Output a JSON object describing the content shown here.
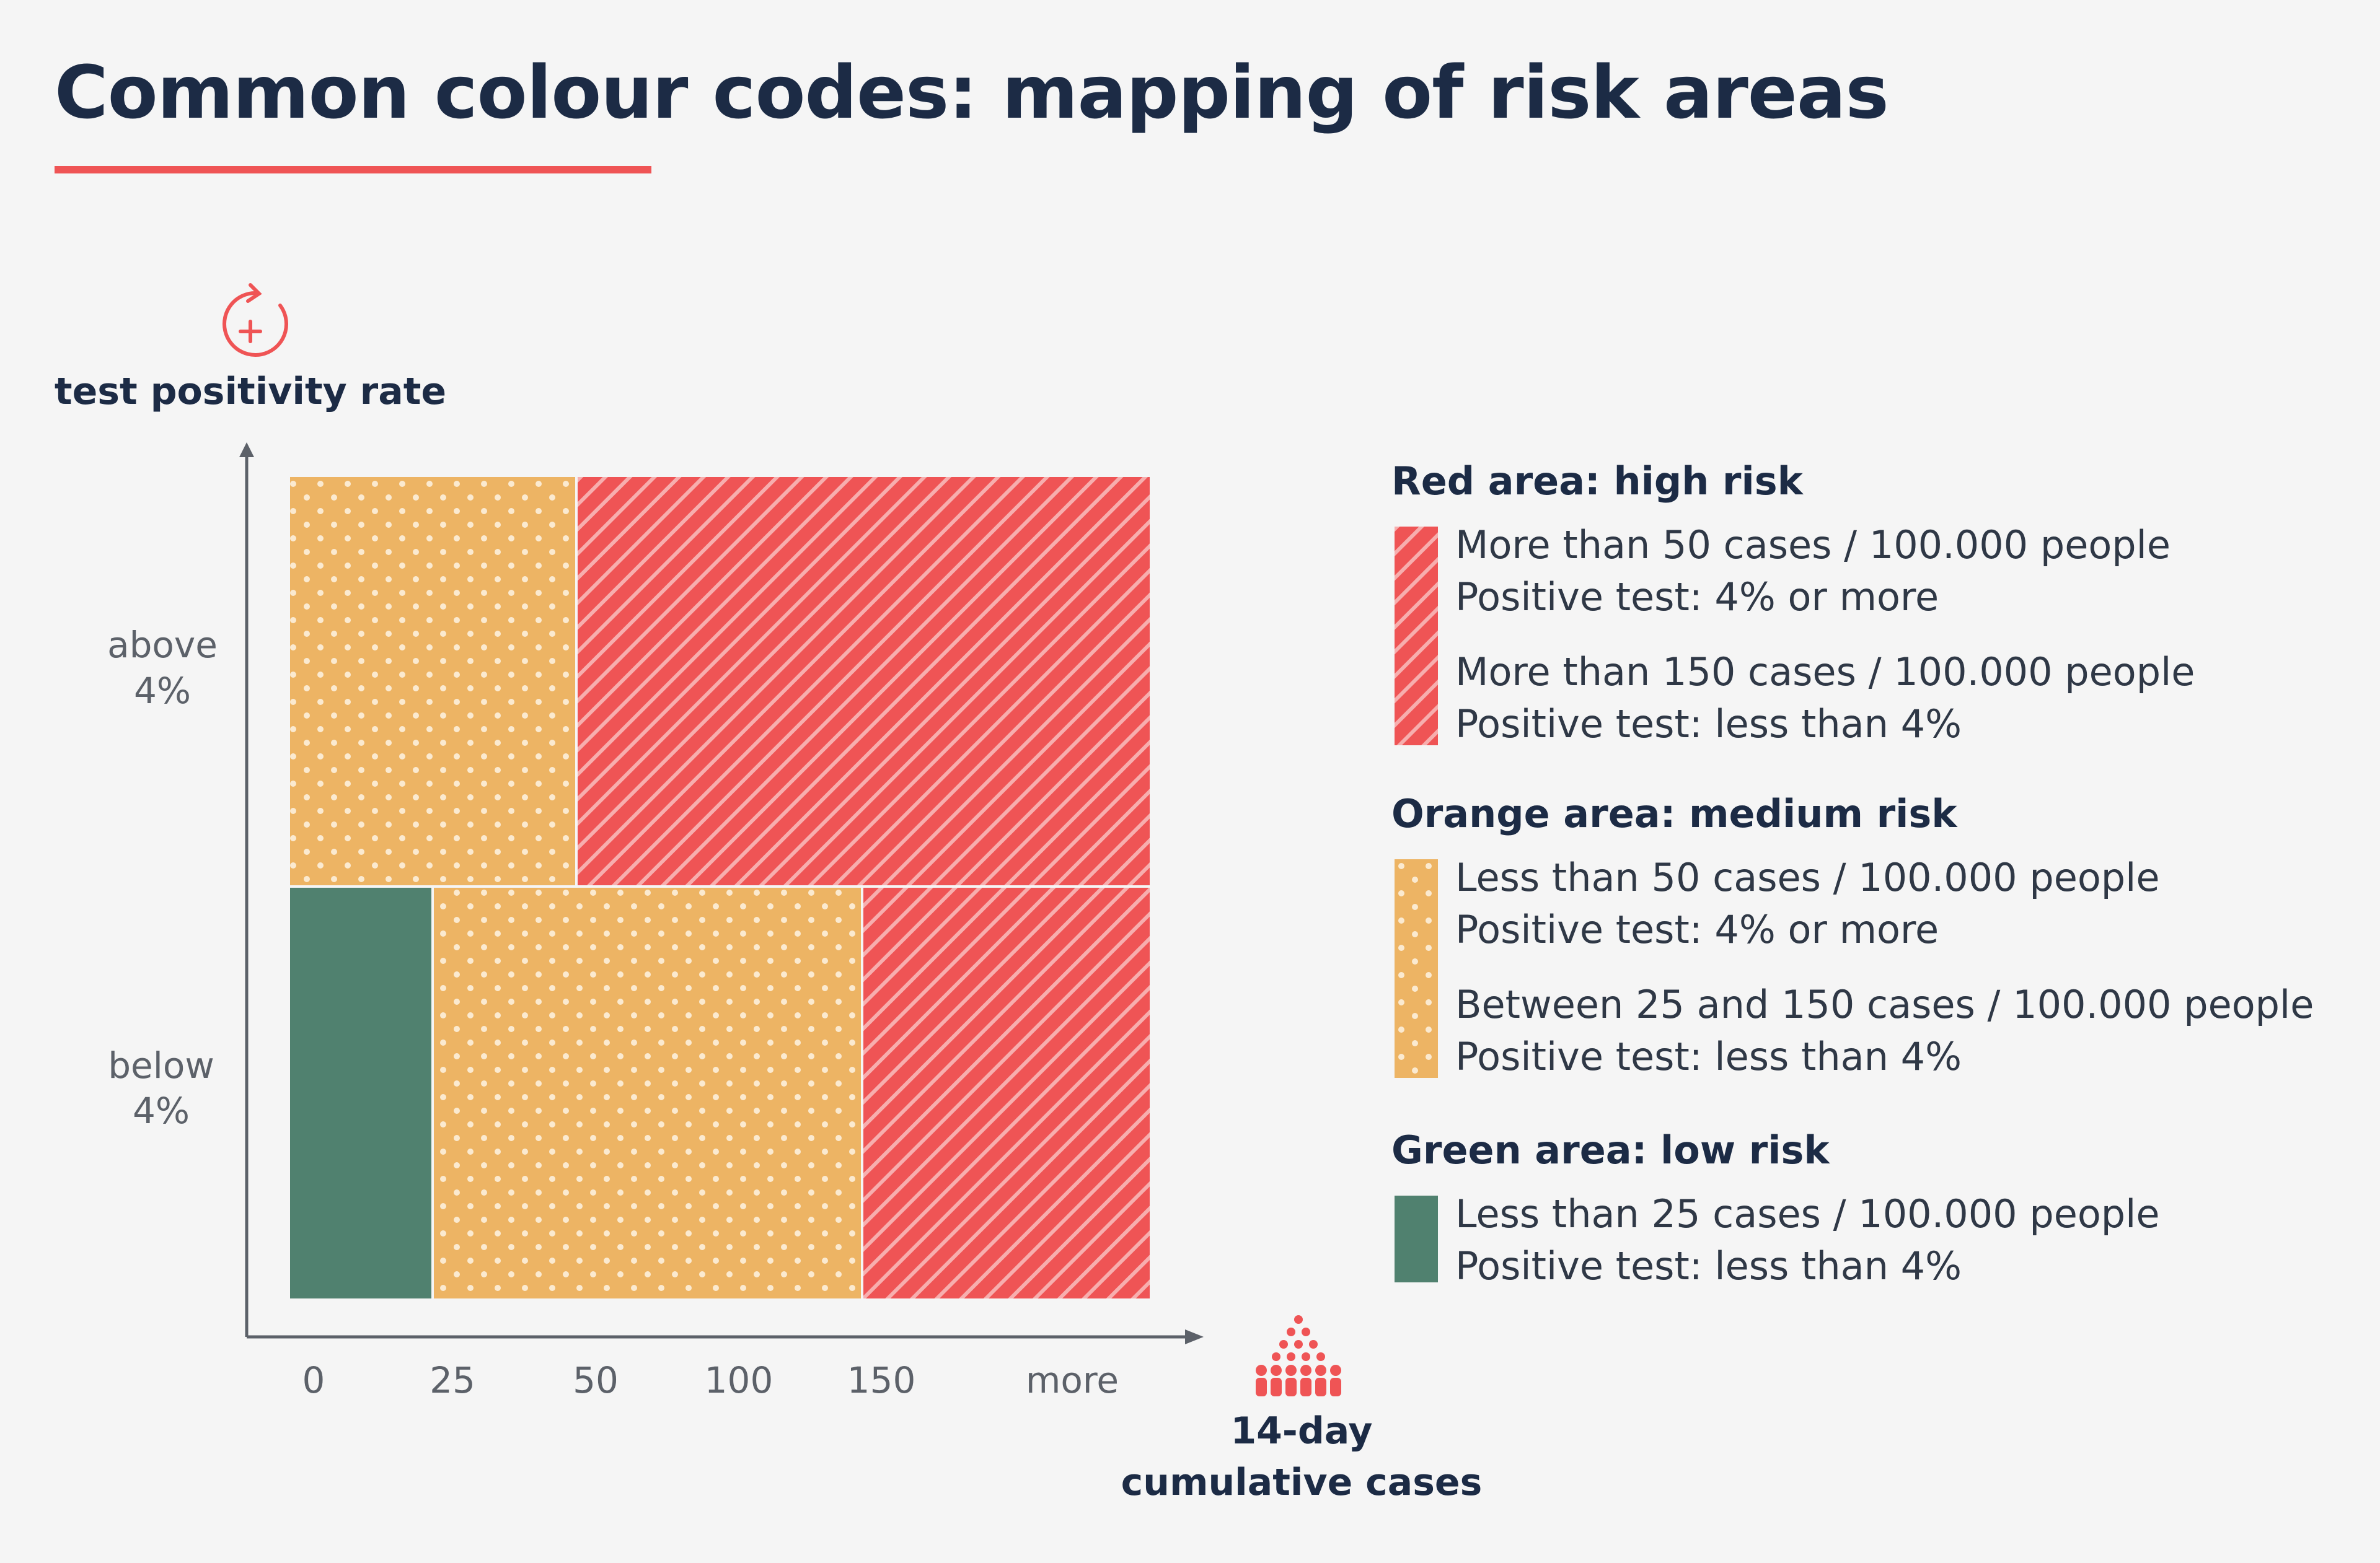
{
  "title": "Common colour codes: mapping of risk areas",
  "colors": {
    "red": "#ef5455",
    "orange": "#edb464",
    "green": "#50816f",
    "navy": "#1c2b45",
    "accent_line": "#ef5455"
  },
  "y_axis": {
    "label": "test positivity rate",
    "icon": "test-tube-refresh-icon",
    "ticks": [
      {
        "line1": "above",
        "line2": "4%"
      },
      {
        "line1": "below",
        "line2": "4%"
      }
    ]
  },
  "x_axis": {
    "label_line1": "14-day",
    "label_line2": "cumulative cases",
    "icon": "crowd-icon",
    "ticks": [
      "0",
      "25",
      "50",
      "100",
      "150",
      "more"
    ]
  },
  "legend": [
    {
      "heading": "Red area: high risk",
      "color": "red",
      "pattern": "stripes",
      "items": [
        {
          "line1": "More than 50 cases / 100.000 people",
          "line2": "Positive test: 4% or more"
        },
        {
          "line1": "More than 150 cases / 100.000 people",
          "line2": "Positive test: less than 4%"
        }
      ]
    },
    {
      "heading": "Orange area: medium risk",
      "color": "orange",
      "pattern": "dots",
      "items": [
        {
          "line1": "Less than 50 cases / 100.000 people",
          "line2": "Positive test: 4% or more"
        },
        {
          "line1": "Between 25 and 150 cases / 100.000 people",
          "line2": "Positive test: less than 4%"
        }
      ]
    },
    {
      "heading": "Green area: low risk",
      "color": "green",
      "pattern": "solid",
      "items": [
        {
          "line1": "Less than 25 cases / 100.000 people",
          "line2": "Positive test: less than 4%"
        }
      ]
    }
  ],
  "regions": [
    {
      "row": "above 4%",
      "from": "0",
      "to": "50",
      "risk": "orange"
    },
    {
      "row": "above 4%",
      "from": "50",
      "to": "more",
      "risk": "red"
    },
    {
      "row": "below 4%",
      "from": "0",
      "to": "25",
      "risk": "green"
    },
    {
      "row": "below 4%",
      "from": "25",
      "to": "150",
      "risk": "orange"
    },
    {
      "row": "below 4%",
      "from": "150",
      "to": "more",
      "risk": "red"
    }
  ]
}
